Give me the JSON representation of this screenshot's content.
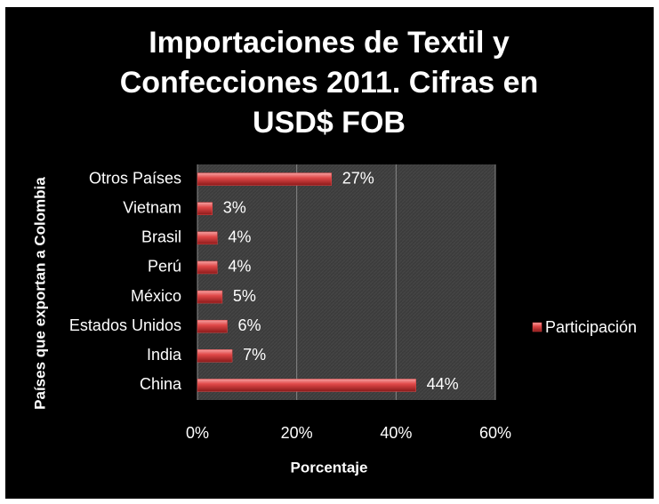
{
  "chart_data": {
    "type": "barh",
    "title": "Importaciones de Textil y Confecciones 2011. Cifras en USD$ FOB",
    "xlabel": "Porcentaje",
    "ylabel": "Países que exportan a Colombia",
    "categories": [
      "Otros Países",
      "Vietnam",
      "Brasil",
      "Perú",
      "México",
      "Estados Unidos",
      "India",
      "China"
    ],
    "series": [
      {
        "name": "Participación",
        "color": "#e04848",
        "values": [
          27,
          3,
          4,
          4,
          5,
          6,
          7,
          44
        ],
        "value_labels": [
          "27%",
          "3%",
          "4%",
          "4%",
          "5%",
          "6%",
          "7%",
          "44%"
        ]
      }
    ],
    "xlim": [
      0,
      60
    ],
    "xticks": [
      {
        "value": 0,
        "label": "0%"
      },
      {
        "value": 20,
        "label": "20%"
      },
      {
        "value": 40,
        "label": "40%"
      },
      {
        "value": 60,
        "label": "60%"
      }
    ],
    "grid": true,
    "legend": "right"
  }
}
